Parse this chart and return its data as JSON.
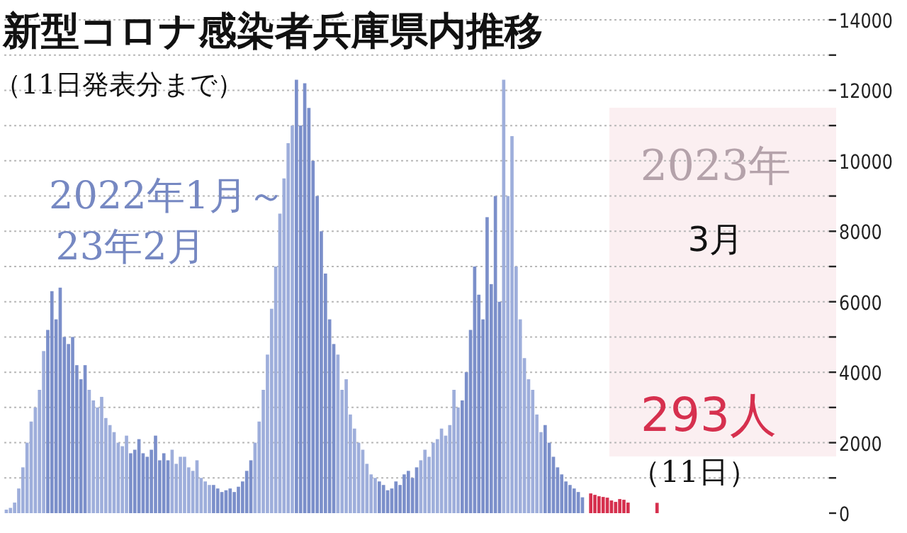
{
  "chart_data": {
    "type": "bar",
    "title": "新型コロナ感染者兵庫県内推移",
    "subtitle": "（11日発表分まで）",
    "annotations": [
      "2022年1月～",
      "23年2月",
      "2023年",
      "3月",
      "293人",
      "（11日）"
    ],
    "categories": [
      null,
      null,
      null,
      null,
      null,
      null,
      null,
      null,
      null,
      null,
      null,
      null,
      null,
      null,
      null,
      null,
      null,
      null,
      null,
      null,
      null,
      null,
      null,
      null,
      null,
      null,
      null,
      null,
      null,
      null,
      null,
      null,
      null,
      null,
      null,
      null,
      null,
      null,
      null,
      null,
      null,
      null,
      null,
      null,
      null,
      null,
      null,
      null,
      null,
      null,
      null,
      null,
      null,
      null,
      null,
      null,
      null,
      null,
      null,
      null,
      null,
      null,
      null,
      null,
      null,
      null,
      null,
      null,
      null,
      null,
      null,
      null,
      null,
      null,
      null,
      null,
      null,
      null,
      null,
      null,
      null,
      null,
      null,
      null,
      null,
      null,
      null,
      null,
      null,
      null,
      null,
      null,
      null,
      null,
      null,
      null,
      null,
      null,
      null,
      null,
      null,
      null,
      null,
      null,
      null,
      null,
      null,
      null,
      null,
      null,
      null,
      null,
      null,
      null,
      null,
      null,
      null,
      null,
      null,
      null,
      null,
      null,
      null,
      null,
      null,
      null,
      null,
      null,
      null,
      null,
      null,
      null,
      null,
      null,
      null,
      null,
      null,
      null,
      null,
      null,
      null,
      null,
      null,
      null,
      null,
      null,
      null,
      null,
      null,
      null,
      null,
      null,
      null,
      null,
      null,
      null,
      null,
      null,
      null,
      null,
      null,
      null,
      null,
      null,
      null,
      null,
      null,
      null,
      null,
      null,
      null,
      null,
      null,
      null,
      null,
      null,
      null,
      null,
      null,
      null,
      null,
      null,
      null,
      null,
      null,
      null,
      null,
      null,
      null,
      null,
      null,
      null,
      null,
      null,
      null,
      null,
      null,
      null,
      null
    ],
    "values": [
      100,
      150,
      300,
      700,
      1300,
      2000,
      2600,
      3000,
      3500,
      4600,
      5200,
      6300,
      5500,
      6400,
      5000,
      4800,
      5000,
      4200,
      3800,
      4200,
      3500,
      3200,
      3000,
      3300,
      2700,
      2500,
      2300,
      2000,
      1900,
      2200,
      1700,
      1800,
      2100,
      1700,
      1600,
      1800,
      2200,
      1500,
      1700,
      1500,
      1800,
      1400,
      1600,
      1600,
      1300,
      1200,
      1500,
      1000,
      900,
      800,
      800,
      700,
      600,
      650,
      700,
      600,
      750,
      900,
      1200,
      1500,
      2000,
      2600,
      3500,
      4500,
      5800,
      7000,
      8500,
      9500,
      10500,
      11000,
      12300,
      11000,
      12200,
      11500,
      10000,
      9000,
      8000,
      6800,
      5500,
      4800,
      4500,
      3500,
      3800,
      2800,
      2400,
      2000,
      1800,
      1400,
      1100,
      1000,
      900,
      800,
      650,
      700,
      900,
      800,
      1100,
      1200,
      1000,
      1300,
      1500,
      1800,
      1600,
      2000,
      2100,
      2400,
      2200,
      2500,
      3500,
      3000,
      3200,
      4000,
      5200,
      7000,
      6200,
      5500,
      8400,
      6500,
      9000,
      6000,
      12300,
      9000,
      10700,
      7000,
      5500,
      4400,
      3800,
      3500,
      2800,
      2300,
      2500,
      2000,
      1600,
      1300,
      1100,
      900,
      800,
      700,
      600,
      450,
      null,
      560,
      520,
      480,
      460,
      440,
      360,
      320,
      400,
      380,
      300,
      null,
      null,
      null,
      null,
      null,
      null,
      293,
      null,
      null,
      null,
      null,
      null,
      null,
      null,
      null,
      null,
      null,
      null,
      null,
      null,
      null,
      null,
      null,
      null,
      null,
      null,
      null,
      null,
      null,
      null,
      null,
      null,
      null,
      null,
      null,
      null,
      null,
      null,
      null,
      null,
      null,
      null,
      null,
      null,
      null,
      null,
      null,
      null
    ],
    "colors": [
      "#9eaedb",
      "#9eaedb",
      "#9eaedb",
      "#9eaedb",
      "#9eaedb",
      "#9eaedb",
      "#9eaedb",
      "#9eaedb",
      "#9eaedb",
      "#9eaedb",
      "#7b8fca",
      "#7b8fca",
      "#7b8fca",
      "#7b8fca",
      "#7b8fca",
      "#7b8fca",
      "#7b8fca",
      "#7b8fca",
      "#7b8fca",
      "#7b8fca",
      "#9eaedb",
      "#9eaedb",
      "#9eaedb",
      "#9eaedb",
      "#9eaedb",
      "#9eaedb",
      "#9eaedb",
      "#9eaedb",
      "#9eaedb",
      "#9eaedb",
      "#7b8fca",
      "#7b8fca",
      "#7b8fca",
      "#7b8fca",
      "#7b8fca",
      "#7b8fca",
      "#7b8fca",
      "#7b8fca",
      "#7b8fca",
      "#7b8fca",
      "#9eaedb",
      "#9eaedb",
      "#9eaedb",
      "#9eaedb",
      "#9eaedb",
      "#9eaedb",
      "#9eaedb",
      "#9eaedb",
      "#9eaedb",
      "#9eaedb",
      "#7b8fca",
      "#7b8fca",
      "#7b8fca",
      "#7b8fca",
      "#7b8fca",
      "#7b8fca",
      "#7b8fca",
      "#7b8fca",
      "#7b8fca",
      "#7b8fca",
      "#9eaedb",
      "#9eaedb",
      "#9eaedb",
      "#9eaedb",
      "#9eaedb",
      "#9eaedb",
      "#9eaedb",
      "#9eaedb",
      "#9eaedb",
      "#9eaedb",
      "#7b8fca",
      "#7b8fca",
      "#7b8fca",
      "#7b8fca",
      "#7b8fca",
      "#7b8fca",
      "#7b8fca",
      "#7b8fca",
      "#7b8fca",
      "#7b8fca",
      "#9eaedb",
      "#9eaedb",
      "#9eaedb",
      "#9eaedb",
      "#9eaedb",
      "#9eaedb",
      "#9eaedb",
      "#9eaedb",
      "#9eaedb",
      "#9eaedb",
      "#7b8fca",
      "#7b8fca",
      "#7b8fca",
      "#7b8fca",
      "#7b8fca",
      "#7b8fca",
      "#7b8fca",
      "#7b8fca",
      "#7b8fca",
      "#7b8fca",
      "#9eaedb",
      "#9eaedb",
      "#9eaedb",
      "#9eaedb",
      "#9eaedb",
      "#9eaedb",
      "#9eaedb",
      "#9eaedb",
      "#9eaedb",
      "#9eaedb",
      "#7b8fca",
      "#7b8fca",
      "#7b8fca",
      "#7b8fca",
      "#7b8fca",
      "#7b8fca",
      "#7b8fca",
      "#7b8fca",
      "#7b8fca",
      "#7b8fca",
      "#9eaedb",
      "#9eaedb",
      "#9eaedb",
      "#9eaedb",
      "#9eaedb",
      "#9eaedb",
      "#9eaedb",
      "#9eaedb",
      "#9eaedb",
      "#9eaedb",
      "#7b8fca",
      "#7b8fca",
      "#7b8fca",
      "#7b8fca",
      "#7b8fca",
      "#7b8fca",
      "#7b8fca",
      "#7b8fca",
      "#7b8fca",
      "#7b8fca",
      null,
      "#d6304e",
      "#d6304e",
      "#d6304e",
      "#d6304e",
      "#d6304e",
      "#d6304e",
      "#d6304e",
      "#d6304e",
      "#d6304e",
      "#d6304e",
      null,
      null,
      null,
      null,
      null,
      null,
      "#d6304e",
      null,
      null,
      null,
      null,
      null,
      null,
      null,
      null,
      null,
      null,
      null,
      null,
      null,
      null,
      null,
      null,
      null,
      null,
      null,
      null,
      null,
      null,
      null,
      null,
      null,
      null,
      null,
      null,
      null,
      null,
      null,
      null,
      null,
      null,
      null,
      null,
      null,
      null,
      null,
      null,
      null
    ],
    "ylim": [
      0,
      14000
    ],
    "yticks": [
      0,
      {
        "value": 1000,
        "label": null
      },
      2000,
      {
        "value": 3000,
        "label": null
      },
      4000,
      {
        "value": 5000,
        "label": null
      },
      6000,
      {
        "value": 7000,
        "label": null
      },
      8000,
      {
        "value": 9000,
        "label": null
      },
      10000,
      {
        "value": 11000,
        "label": null
      },
      12000,
      {
        "value": 13000,
        "label": null
      },
      14000
    ],
    "grid": "y"
  }
}
